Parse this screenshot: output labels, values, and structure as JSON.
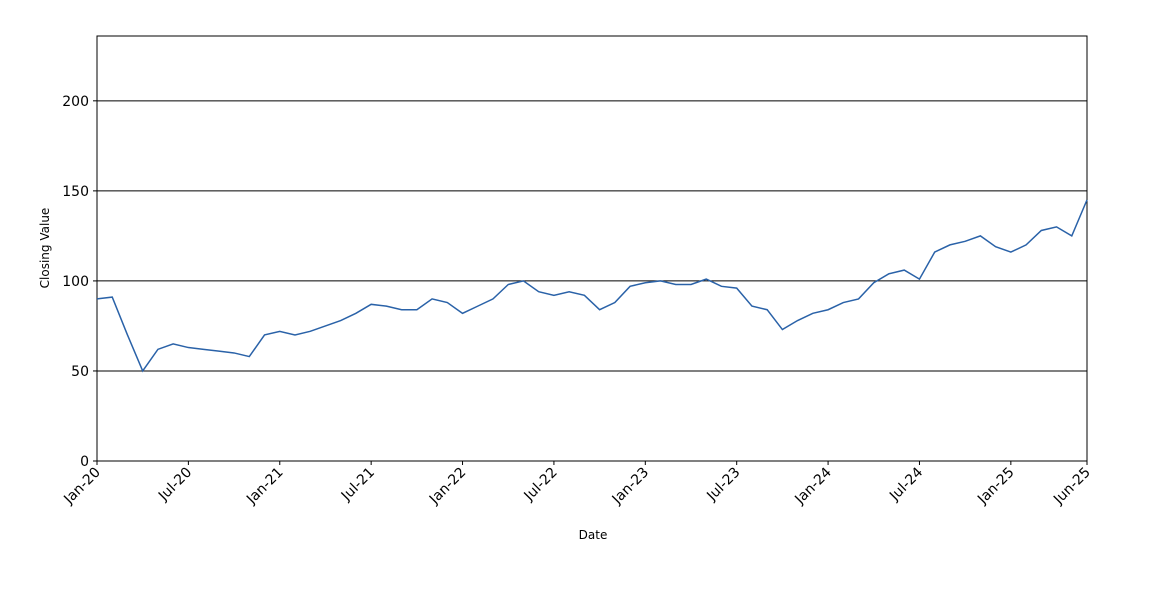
{
  "chart_data": {
    "type": "line",
    "x_label": "Date",
    "y_label": "Closing Value",
    "x": [
      "2020-01",
      "2020-02",
      "2020-03",
      "2020-04",
      "2020-05",
      "2020-06",
      "2020-07",
      "2020-08",
      "2020-09",
      "2020-10",
      "2020-11",
      "2020-12",
      "2021-01",
      "2021-02",
      "2021-03",
      "2021-04",
      "2021-05",
      "2021-06",
      "2021-07",
      "2021-08",
      "2021-09",
      "2021-10",
      "2021-11",
      "2021-12",
      "2022-01",
      "2022-02",
      "2022-03",
      "2022-04",
      "2022-05",
      "2022-06",
      "2022-07",
      "2022-08",
      "2022-09",
      "2022-10",
      "2022-11",
      "2022-12",
      "2023-01",
      "2023-02",
      "2023-03",
      "2023-04",
      "2023-05",
      "2023-06",
      "2023-07",
      "2023-08",
      "2023-09",
      "2023-10",
      "2023-11",
      "2023-12",
      "2024-01",
      "2024-02",
      "2024-03",
      "2024-04",
      "2024-05",
      "2024-06",
      "2024-07",
      "2024-08",
      "2024-09",
      "2024-10",
      "2024-11",
      "2024-12",
      "2025-01",
      "2025-02",
      "2025-03",
      "2025-04",
      "2025-05",
      "2025-06"
    ],
    "series": [
      {
        "name": "Closing Value",
        "color": "#2a62a8",
        "values": [
          90,
          91,
          70,
          50,
          62,
          65,
          63,
          62,
          61,
          60,
          58,
          70,
          72,
          70,
          72,
          75,
          78,
          82,
          87,
          86,
          84,
          84,
          90,
          88,
          82,
          86,
          90,
          98,
          100,
          94,
          92,
          94,
          92,
          84,
          88,
          97,
          99,
          100,
          98,
          98,
          101,
          97,
          96,
          86,
          84,
          73,
          78,
          82,
          84,
          88,
          90,
          99,
          104,
          106,
          101,
          116,
          120,
          122,
          125,
          119,
          116,
          120,
          128,
          130,
          125,
          145
        ]
      }
    ],
    "xlim": [
      "2020-01",
      "2025-06"
    ],
    "xticks": [
      {
        "value": "2020-01",
        "label": "Jan-20"
      },
      {
        "value": "2020-07",
        "label": "Jul-20"
      },
      {
        "value": "2021-01",
        "label": "Jan-21"
      },
      {
        "value": "2021-07",
        "label": "Jul-21"
      },
      {
        "value": "2022-01",
        "label": "Jan-22"
      },
      {
        "value": "2022-07",
        "label": "Jul-22"
      },
      {
        "value": "2023-01",
        "label": "Jan-23"
      },
      {
        "value": "2023-07",
        "label": "Jul-23"
      },
      {
        "value": "2024-01",
        "label": "Jan-24"
      },
      {
        "value": "2024-07",
        "label": "Jul-24"
      },
      {
        "value": "2025-01",
        "label": "Jan-25"
      },
      {
        "value": "2025-06",
        "label": "Jun-25"
      }
    ],
    "ylim": [
      0,
      236
    ],
    "yticks": [
      0,
      50,
      100,
      150,
      200
    ],
    "grid": true
  }
}
